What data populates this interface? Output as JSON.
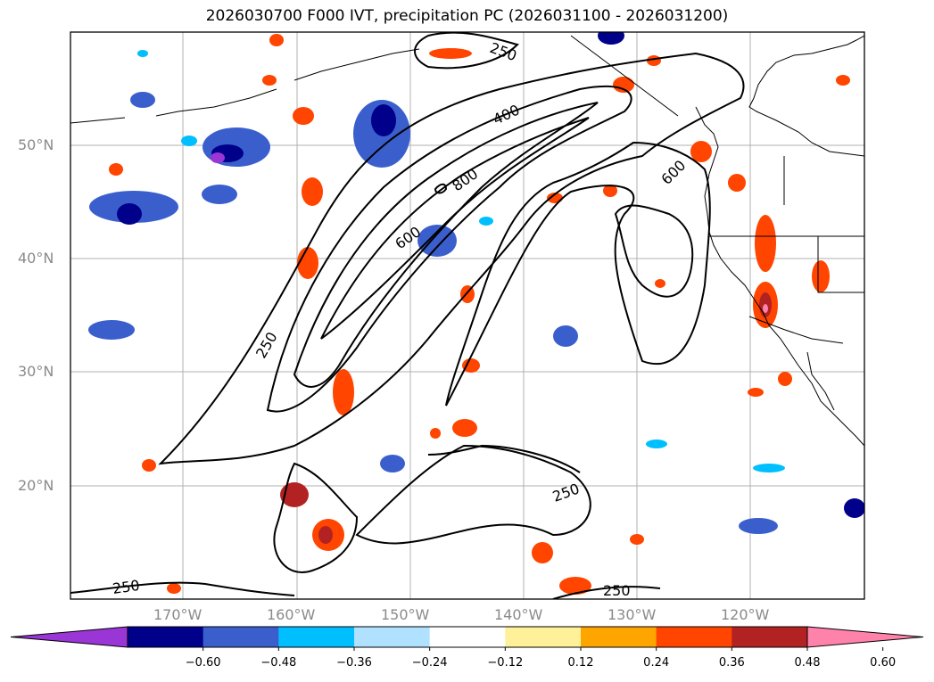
{
  "title": "2026030700 F000 IVT, precipitation PC (2026031100 - 2026031200)",
  "map": {
    "lon_range_deg": [
      180,
      110
    ],
    "lat_range_deg": [
      10,
      60
    ],
    "gridlines": true,
    "lat_labels": [
      "50°N",
      "40°N",
      "30°N",
      "20°N"
    ],
    "lon_labels": [
      "170°W",
      "160°W",
      "150°W",
      "140°W",
      "130°W",
      "120°W"
    ],
    "contour_labels": [
      "250",
      "400",
      "800",
      "600",
      "250",
      "600",
      "250",
      "250",
      "250"
    ]
  },
  "colorbar": {
    "extend": "both",
    "ticks": [
      "−0.60",
      "−0.48",
      "−0.36",
      "−0.24",
      "−0.12",
      "0.12",
      "0.24",
      "0.36",
      "0.48",
      "0.60"
    ],
    "colors": [
      "#9a35d6",
      "#00008b",
      "#3a5fcd",
      "#00bfff",
      "#b0e2ff",
      "#ffffff",
      "#fff09a",
      "#ffa500",
      "#ff4500",
      "#b22222",
      "#ff82ab"
    ]
  }
}
